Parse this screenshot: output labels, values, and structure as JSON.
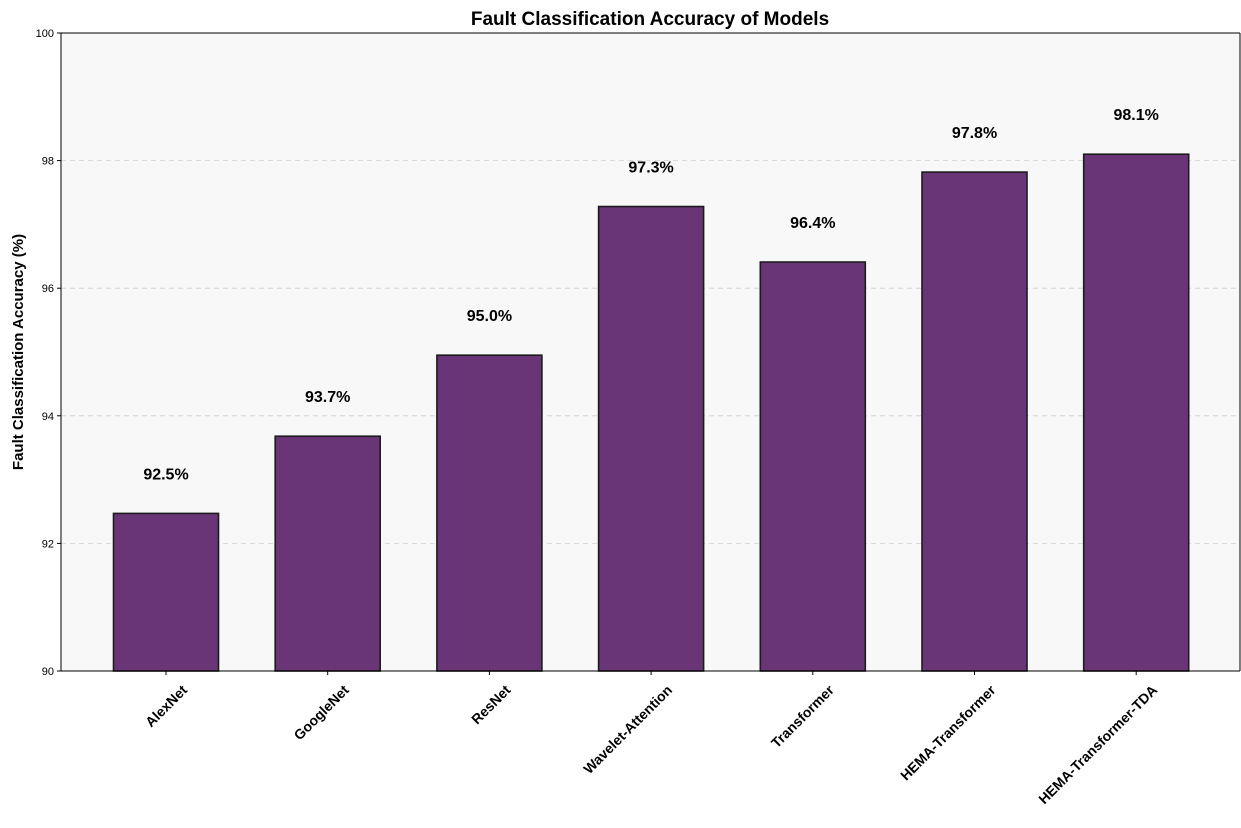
{
  "chart_data": {
    "type": "bar",
    "title": "Fault Classification Accuracy of Models",
    "xlabel": "",
    "ylabel": "Fault Classification Accuracy (%)",
    "categories": [
      "AlexNet",
      "GoogleNet",
      "ResNet",
      "Wavelet-Attention",
      "Transformer",
      "HEMA-Transformer",
      "HEMA-Transformer-TDA"
    ],
    "values": [
      92.47,
      93.68,
      94.95,
      97.28,
      96.41,
      97.82,
      98.1
    ],
    "data_labels": [
      "92.5%",
      "93.7%",
      "95.0%",
      "97.3%",
      "96.4%",
      "97.8%",
      "98.1%"
    ],
    "ylim": [
      90,
      100
    ],
    "yticks": [
      90,
      92,
      94,
      96,
      98,
      100
    ],
    "ytick_labels": [
      "90",
      "92",
      "94",
      "96",
      "98",
      "100"
    ],
    "grid": "horizontal dashed, y-axis only",
    "legend": "none",
    "colors": {
      "bar": "#6a3576",
      "bar_edge": "#1c1c1c",
      "plot_background": "#f8f8f8"
    }
  }
}
